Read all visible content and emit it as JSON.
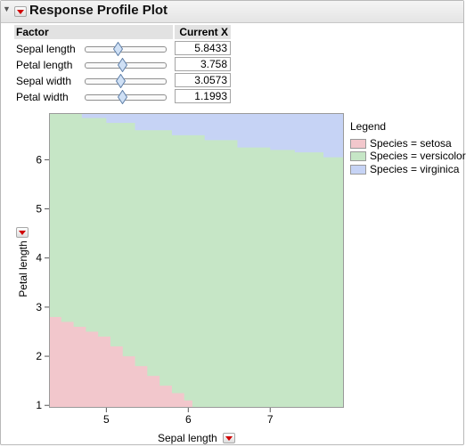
{
  "title": "Response Profile Plot",
  "table": {
    "factor_header": "Factor",
    "value_header": "Current X",
    "rows": [
      {
        "label": "Sepal length",
        "value": "5.8433",
        "slider_position": 0.42
      },
      {
        "label": "Petal length",
        "value": "3.758",
        "slider_position": 0.47
      },
      {
        "label": "Sepal width",
        "value": "3.0573",
        "slider_position": 0.45
      },
      {
        "label": "Petal width",
        "value": "1.1993",
        "slider_position": 0.47
      }
    ]
  },
  "icons": {
    "disclosure": "disclosure-triangle-icon",
    "menu": "red-triangle-menu-icon",
    "thumb": "diamond-slider-thumb-icon"
  },
  "colors": {
    "setosa": "#f2c7cc",
    "versicolor": "#c6e6c6",
    "virginica": "#c6d3f5",
    "menu_arrow": "#d00000",
    "slider_thumb": "#cfe0f5"
  },
  "chart_data": {
    "type": "area",
    "title": "",
    "xlabel": "Sepal length",
    "ylabel": "Petal length",
    "xlim": [
      4.3,
      7.9
    ],
    "ylim": [
      0.95,
      6.95
    ],
    "x_ticks": [
      5,
      6,
      7
    ],
    "y_ticks": [
      1,
      2,
      3,
      4,
      5,
      6
    ],
    "legend": {
      "title": "Legend",
      "position": "right",
      "entries": [
        "Species = setosa",
        "Species = versicolor",
        "Species = virginica"
      ]
    },
    "series": [
      {
        "name": "Species = setosa",
        "boundary": [
          [
            4.3,
            2.8
          ],
          [
            4.45,
            2.7
          ],
          [
            4.6,
            2.6
          ],
          [
            4.75,
            2.5
          ],
          [
            4.9,
            2.4
          ],
          [
            5.05,
            2.2
          ],
          [
            5.2,
            2.0
          ],
          [
            5.35,
            1.8
          ],
          [
            5.5,
            1.6
          ],
          [
            5.65,
            1.4
          ],
          [
            5.8,
            1.25
          ],
          [
            5.95,
            1.1
          ],
          [
            6.05,
            1.0
          ]
        ]
      },
      {
        "name": "Species = versicolor",
        "region": "between setosa boundary and virginica boundary"
      },
      {
        "name": "Species = virginica",
        "boundary": [
          [
            4.3,
            6.95
          ],
          [
            4.7,
            6.85
          ],
          [
            5.0,
            6.75
          ],
          [
            5.35,
            6.6
          ],
          [
            5.8,
            6.5
          ],
          [
            6.2,
            6.4
          ],
          [
            6.6,
            6.25
          ],
          [
            7.0,
            6.2
          ],
          [
            7.3,
            6.15
          ],
          [
            7.65,
            6.05
          ],
          [
            7.9,
            5.9
          ]
        ]
      }
    ]
  }
}
